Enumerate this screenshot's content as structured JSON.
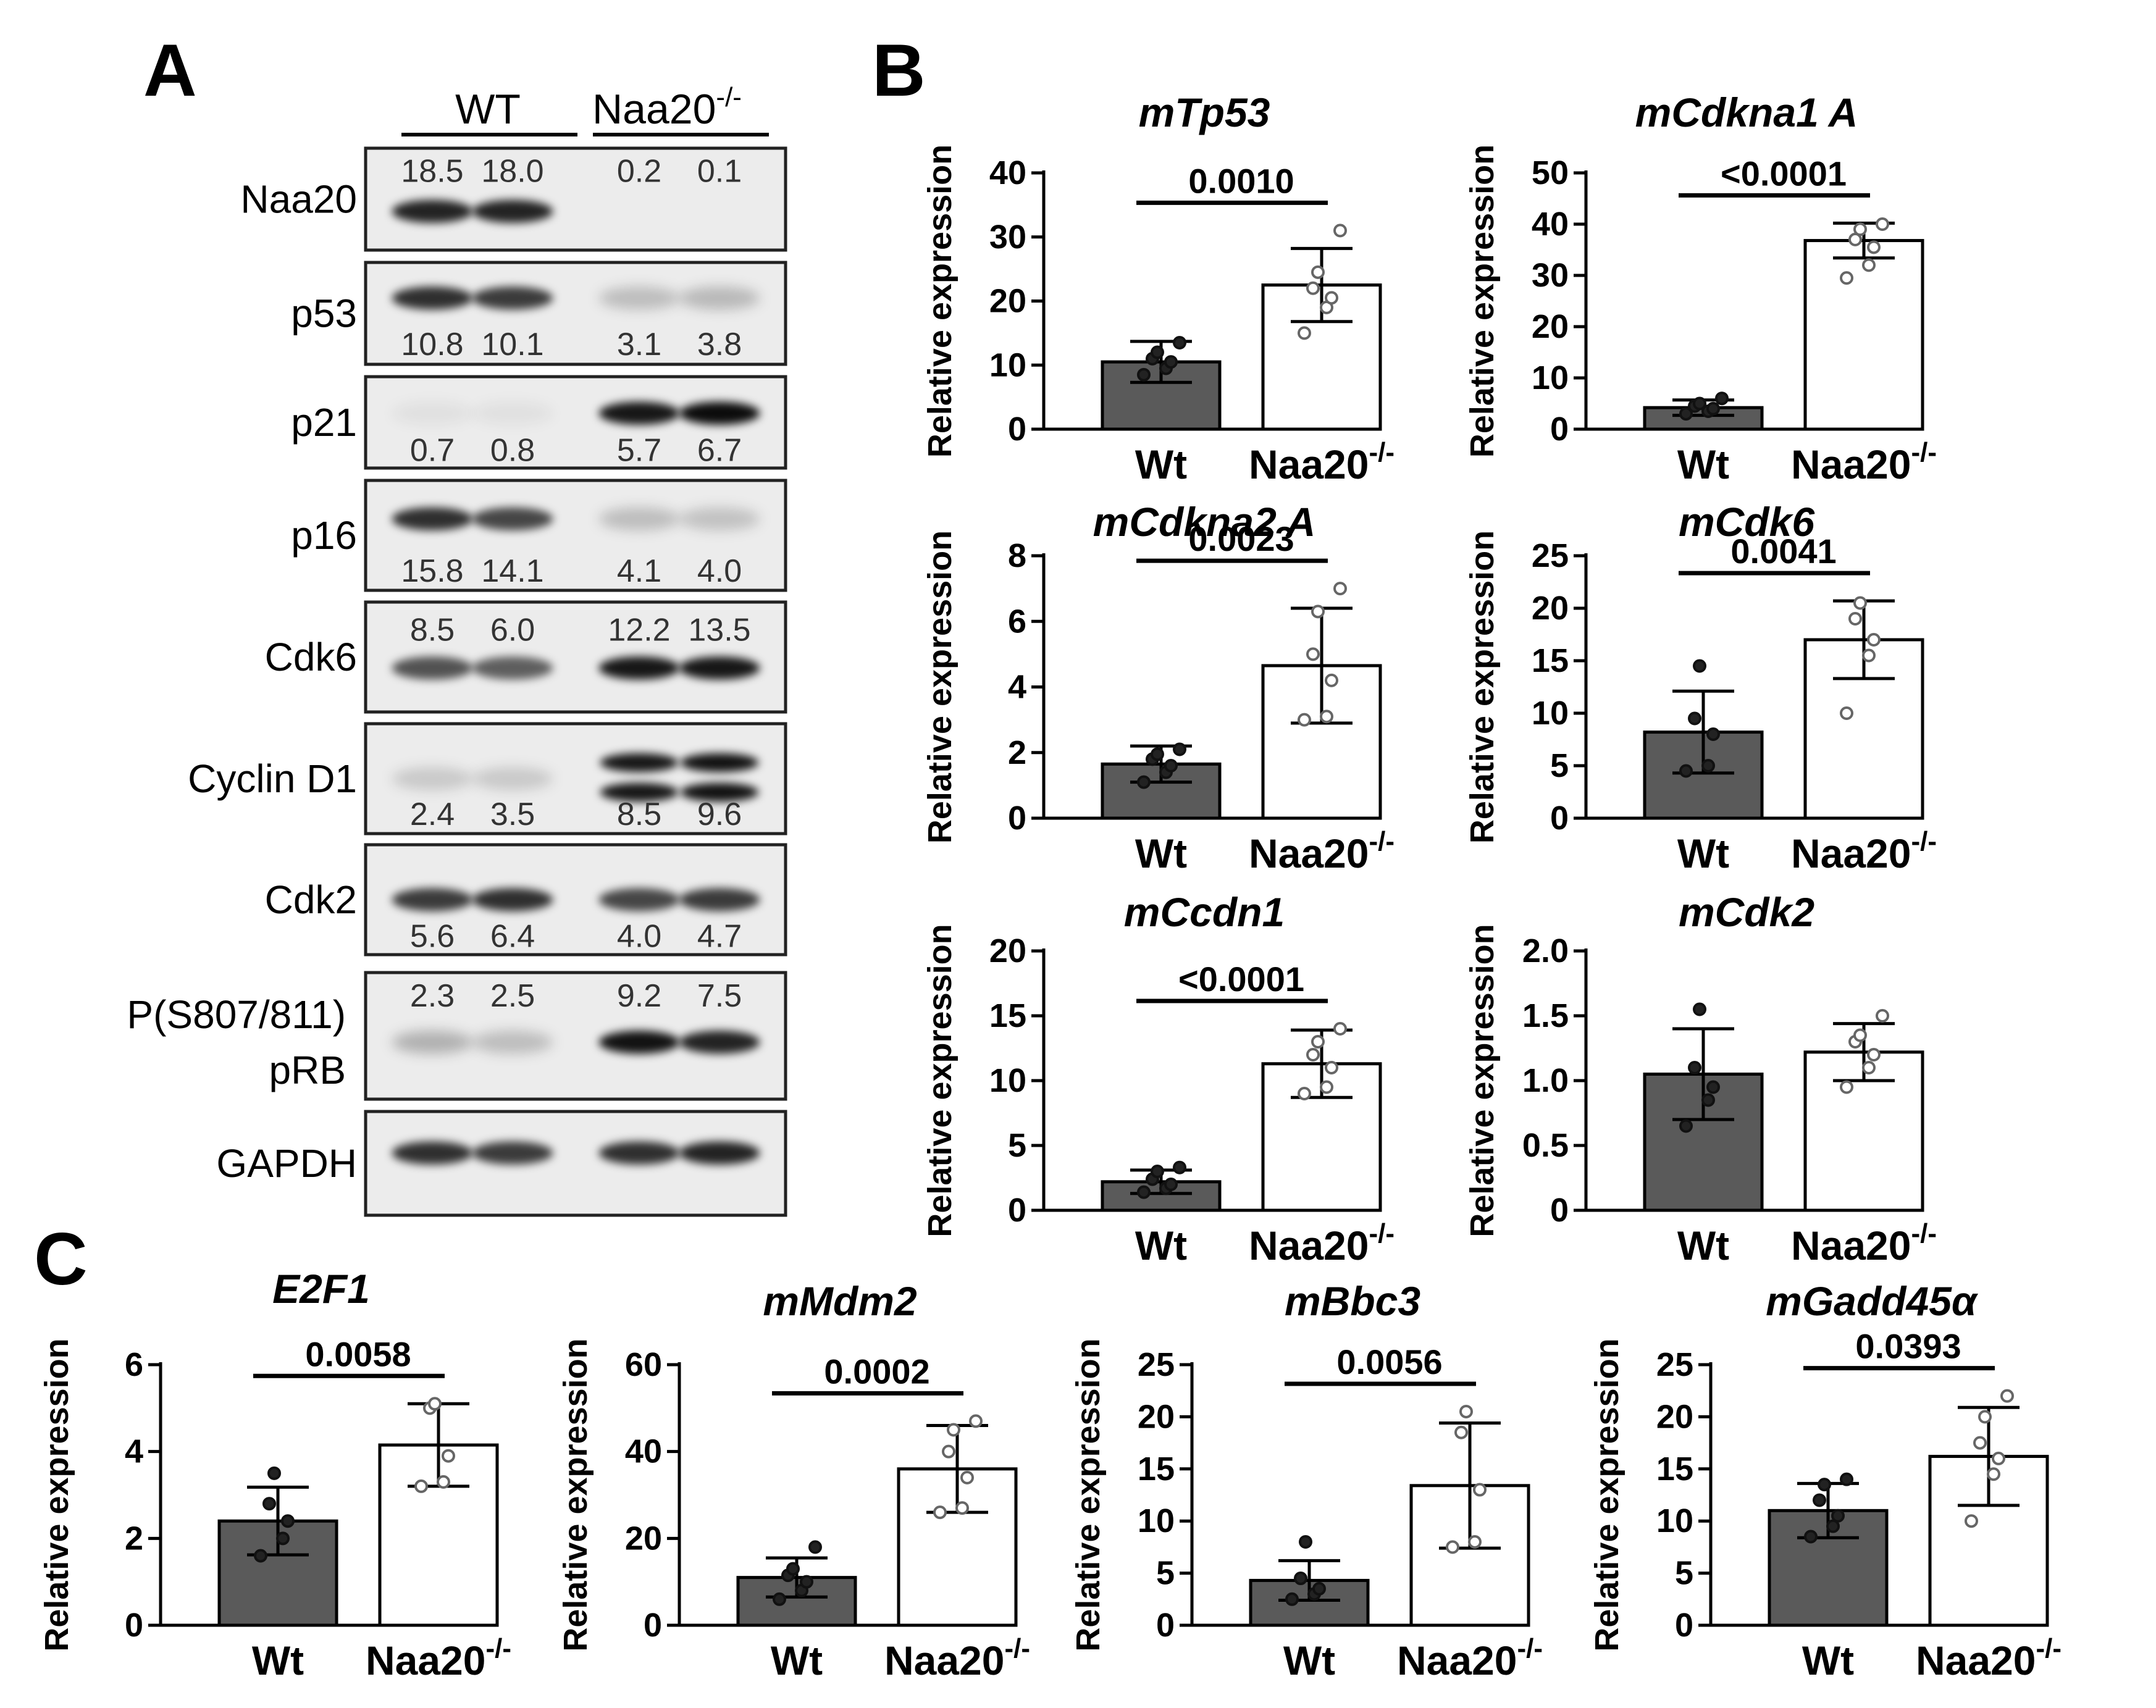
{
  "panels": {
    "a": "A",
    "b": "B",
    "c": "C"
  },
  "blot": {
    "groups": [
      {
        "label": "WT",
        "sup": ""
      },
      {
        "label": "Naa20",
        "sup": "-/-"
      }
    ],
    "rows": [
      {
        "label": "Naa20",
        "values": [
          "18.5",
          "18.0",
          "0.2",
          "0.1"
        ]
      },
      {
        "label": "p53",
        "values": [
          "10.8",
          "10.1",
          "3.1",
          "3.8"
        ]
      },
      {
        "label": "p21",
        "values": [
          "0.7",
          "0.8",
          "5.7",
          "6.7"
        ]
      },
      {
        "label": "p16",
        "values": [
          "15.8",
          "14.1",
          "4.1",
          "4.0"
        ]
      },
      {
        "label": "Cdk6",
        "values": [
          "8.5",
          "6.0",
          "12.2",
          "13.5"
        ]
      },
      {
        "label": "Cyclin D1",
        "values": [
          "2.4",
          "3.5",
          "8.5",
          "9.6"
        ]
      },
      {
        "label": "Cdk2",
        "values": [
          "5.6",
          "6.4",
          "4.0",
          "4.7"
        ]
      },
      {
        "label": "P(S807/811)",
        "label2": "pRB",
        "values": [
          "2.3",
          "2.5",
          "9.2",
          "7.5"
        ]
      },
      {
        "label": "GAPDH",
        "values": []
      }
    ],
    "band_intensity": [
      [
        0.85,
        0.85,
        0.0,
        0.0
      ],
      [
        0.8,
        0.75,
        0.2,
        0.22
      ],
      [
        0.05,
        0.05,
        0.9,
        0.95
      ],
      [
        0.8,
        0.7,
        0.2,
        0.18
      ],
      [
        0.65,
        0.6,
        0.9,
        0.9
      ],
      [
        0.15,
        0.15,
        0.9,
        0.92
      ],
      [
        0.75,
        0.8,
        0.7,
        0.75
      ],
      [
        0.25,
        0.2,
        0.92,
        0.85
      ],
      [
        0.8,
        0.75,
        0.8,
        0.85
      ]
    ]
  },
  "chart_data": [
    {
      "type": "bar",
      "title": "mTp53",
      "ylabel": "Relative expression",
      "categories": [
        "Wt",
        "Naa20"
      ],
      "category_sup": [
        "",
        "-/-"
      ],
      "values": [
        10.5,
        22.5
      ],
      "sd": [
        3.2,
        5.7
      ],
      "ylim": [
        0,
        40
      ],
      "yticks": [
        "0",
        "10",
        "20",
        "30",
        "40"
      ],
      "pvalue": "0.0010",
      "points": [
        [
          8.5,
          9.5,
          10.5,
          11.0,
          12.0,
          13.5
        ],
        [
          15.0,
          19.0,
          20.5,
          22.0,
          24.5,
          31.0
        ]
      ]
    },
    {
      "type": "bar",
      "title": "mCdkna1 A",
      "ylabel": "Relative expression",
      "categories": [
        "Wt",
        "Naa20"
      ],
      "category_sup": [
        "",
        "-/-"
      ],
      "values": [
        4.2,
        36.8
      ],
      "sd": [
        1.5,
        3.4
      ],
      "ylim": [
        0,
        50
      ],
      "yticks": [
        "0",
        "10",
        "20",
        "30",
        "40",
        "50"
      ],
      "pvalue": "<0.0001",
      "points": [
        [
          3.0,
          3.5,
          4.0,
          4.5,
          5.0,
          6.0
        ],
        [
          29.5,
          32.0,
          35.5,
          37.0,
          39.0,
          40.0
        ]
      ]
    },
    {
      "type": "bar",
      "title": "mCdkna2 A",
      "ylabel": "Relative expression",
      "categories": [
        "Wt",
        "Naa20"
      ],
      "category_sup": [
        "",
        "-/-"
      ],
      "values": [
        1.65,
        4.65
      ],
      "sd": [
        0.55,
        1.75
      ],
      "ylim": [
        0,
        8
      ],
      "yticks": [
        "0",
        "2",
        "4",
        "6",
        "8"
      ],
      "pvalue": "0.0023",
      "points": [
        [
          1.1,
          1.4,
          1.6,
          1.8,
          1.95,
          2.1
        ],
        [
          3.0,
          3.1,
          4.2,
          5.0,
          6.3,
          7.0
        ]
      ]
    },
    {
      "type": "bar",
      "title": "mCdk6",
      "ylabel": "Relative expression",
      "categories": [
        "Wt",
        "Naa20"
      ],
      "category_sup": [
        "",
        "-/-"
      ],
      "values": [
        8.2,
        17.0
      ],
      "sd": [
        3.9,
        3.7
      ],
      "ylim": [
        0,
        25
      ],
      "yticks": [
        "0",
        "5",
        "10",
        "15",
        "20",
        "25"
      ],
      "pvalue": "0.0041",
      "points": [
        [
          4.5,
          5.0,
          8.0,
          9.5,
          14.5
        ],
        [
          10.0,
          15.5,
          17.0,
          19.0,
          20.5
        ]
      ]
    },
    {
      "type": "bar",
      "title": "mCcdn1",
      "ylabel": "Relative expression",
      "categories": [
        "Wt",
        "Naa20"
      ],
      "category_sup": [
        "",
        "-/-"
      ],
      "values": [
        2.2,
        11.3
      ],
      "sd": [
        0.9,
        2.6
      ],
      "ylim": [
        0,
        20
      ],
      "yticks": [
        "0",
        "5",
        "10",
        "15",
        "20"
      ],
      "pvalue": "<0.0001",
      "points": [
        [
          1.4,
          1.7,
          2.0,
          2.4,
          3.0,
          3.3
        ],
        [
          9.0,
          9.5,
          11.0,
          12.0,
          13.0,
          14.0
        ]
      ]
    },
    {
      "type": "bar",
      "title": "mCdk2",
      "ylabel": "Relative expression",
      "categories": [
        "Wt",
        "Naa20"
      ],
      "category_sup": [
        "",
        "-/-"
      ],
      "values": [
        1.05,
        1.22
      ],
      "sd": [
        0.35,
        0.22
      ],
      "ylim": [
        0,
        2.0
      ],
      "yticks": [
        "0",
        "0.5",
        "1.0",
        "1.5",
        "2.0"
      ],
      "pvalue": "",
      "points": [
        [
          0.65,
          0.85,
          0.95,
          1.1,
          1.55
        ],
        [
          0.95,
          1.1,
          1.2,
          1.3,
          1.35,
          1.5
        ]
      ]
    },
    {
      "type": "bar",
      "title": "E2F1",
      "ylabel": "Relative expression",
      "categories": [
        "Wt",
        "Naa20"
      ],
      "category_sup": [
        "",
        "-/-"
      ],
      "values": [
        2.4,
        4.15
      ],
      "sd": [
        0.78,
        0.95
      ],
      "ylim": [
        0,
        6
      ],
      "yticks": [
        "0",
        "2",
        "4",
        "6"
      ],
      "pvalue": "0.0058",
      "points": [
        [
          1.6,
          2.0,
          2.4,
          2.8,
          3.5
        ],
        [
          3.2,
          3.3,
          3.9,
          5.0,
          5.1
        ]
      ]
    },
    {
      "type": "bar",
      "title": "mMdm2",
      "ylabel": "Relative expression",
      "categories": [
        "Wt",
        "Naa20"
      ],
      "category_sup": [
        "",
        "-/-"
      ],
      "values": [
        11.0,
        36.0
      ],
      "sd": [
        4.5,
        10.0
      ],
      "ylim": [
        0,
        60
      ],
      "yticks": [
        "0",
        "20",
        "40",
        "60"
      ],
      "pvalue": "0.0002",
      "points": [
        [
          6.0,
          8.0,
          10.0,
          11.5,
          13.0,
          18.0
        ],
        [
          26.0,
          27.0,
          34.0,
          40.0,
          45.0,
          47.0
        ]
      ]
    },
    {
      "type": "bar",
      "title": "mBbc3",
      "ylabel": "Relative expression",
      "categories": [
        "Wt",
        "Naa20"
      ],
      "category_sup": [
        "",
        "-/-"
      ],
      "values": [
        4.3,
        13.4
      ],
      "sd": [
        1.9,
        6.0
      ],
      "ylim": [
        0,
        25
      ],
      "yticks": [
        "0",
        "5",
        "10",
        "15",
        "20",
        "25"
      ],
      "pvalue": "0.0056",
      "points": [
        [
          2.5,
          3.0,
          3.5,
          4.5,
          8.0
        ],
        [
          7.5,
          8.0,
          13.0,
          18.5,
          20.5
        ]
      ]
    },
    {
      "type": "bar",
      "title": "mGadd45α",
      "ylabel": "Relative expression",
      "categories": [
        "Wt",
        "Naa20"
      ],
      "category_sup": [
        "",
        "-/-"
      ],
      "values": [
        11.0,
        16.2
      ],
      "sd": [
        2.6,
        4.7
      ],
      "ylim": [
        0,
        25
      ],
      "yticks": [
        "0",
        "5",
        "10",
        "15",
        "20",
        "25"
      ],
      "pvalue": "0.0393",
      "points": [
        [
          8.5,
          9.5,
          10.5,
          12.0,
          13.5,
          14.0
        ],
        [
          10.0,
          14.5,
          16.0,
          17.5,
          20.0,
          22.0
        ]
      ]
    }
  ]
}
